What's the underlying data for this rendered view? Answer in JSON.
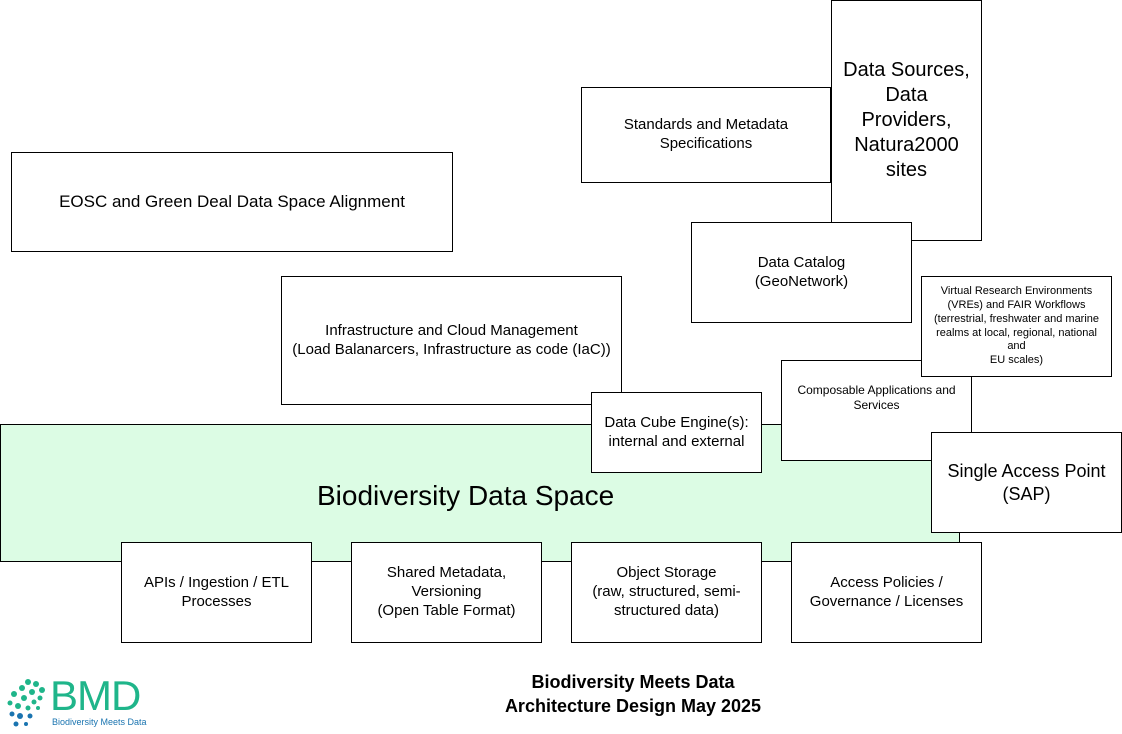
{
  "boxes": {
    "data_sources": "Data Sources,\nData\nProviders,\nNatura2000\nsites",
    "standards": "Standards and Metadata\nSpecifications",
    "eosc": "EOSC and Green Deal Data Space Alignment",
    "data_catalog": "Data Catalog\n(GeoNetwork)",
    "vre": "Virtual Research Environments\n(VREs) and FAIR Workflows\n(terrestrial, freshwater and marine\nrealms at local, regional, national and\nEU scales)",
    "infrastructure": "Infrastructure and Cloud Management\n(Load Balanarcers, Infrastructure as code (IaC))",
    "composable": "Composable Applications and\nServices",
    "data_cube": "Data Cube Engine(s):\ninternal and external",
    "biodiversity_space": "Biodiversity Data Space",
    "single_access": "Single Access Point\n(SAP)",
    "apis": "APIs / Ingestion / ETL\nProcesses",
    "shared_metadata": "Shared Metadata,\nVersioning\n(Open Table Format)",
    "object_storage": "Object Storage\n(raw, structured, semi-\nstructured data)",
    "access_policies": "Access Policies /\nGovernance / Licenses"
  },
  "title": {
    "line1": "Biodiversity Meets Data",
    "line2": "Architecture Design May 2025"
  },
  "logo": {
    "text": "BMD",
    "subtitle": "Biodiversity Meets Data"
  },
  "colors": {
    "core_fill": "#dcfce4",
    "logo_green": "#1fb58a",
    "logo_blue": "#1a74b0"
  }
}
